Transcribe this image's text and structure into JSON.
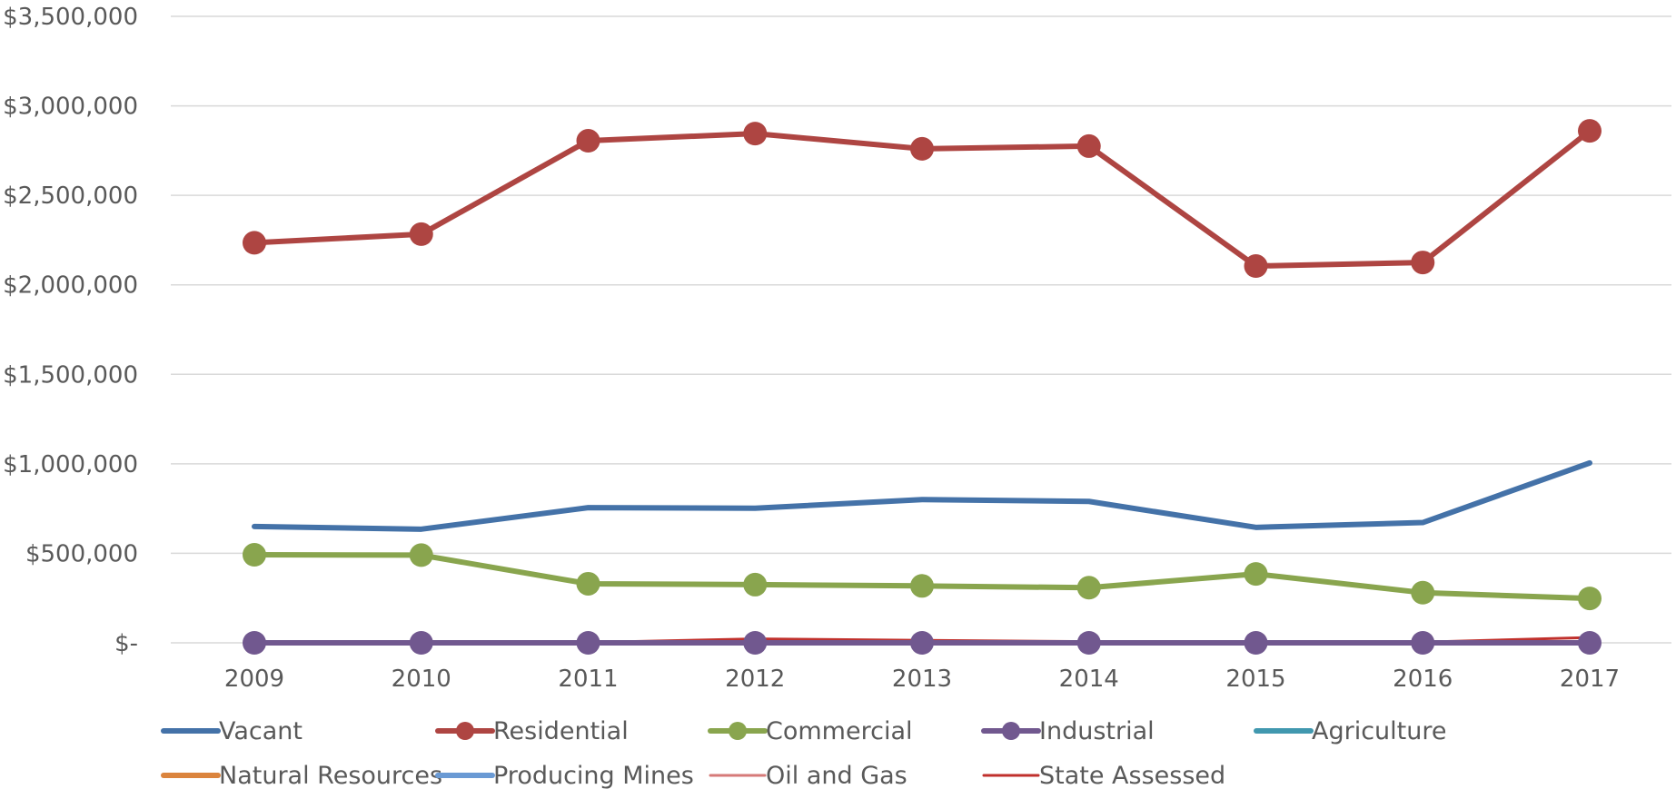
{
  "chart_data": {
    "type": "line",
    "title": "",
    "xlabel": "",
    "ylabel": "",
    "categories": [
      "2009",
      "2010",
      "2011",
      "2012",
      "2013",
      "2014",
      "2015",
      "2016",
      "2017"
    ],
    "ylim": [
      0,
      3500000
    ],
    "y_ticks": [
      {
        "value": 0,
        "label": "$-"
      },
      {
        "value": 500000,
        "label": "$500,000"
      },
      {
        "value": 1000000,
        "label": "$1,000,000"
      },
      {
        "value": 1500000,
        "label": "$1,500,000"
      },
      {
        "value": 2000000,
        "label": "$2,000,000"
      },
      {
        "value": 2500000,
        "label": "$2,500,000"
      },
      {
        "value": 3000000,
        "label": "$3,000,000"
      },
      {
        "value": 3500000,
        "label": "$3,500,000"
      }
    ],
    "grid": true,
    "legend_position": "bottom",
    "series": [
      {
        "name": "Vacant",
        "color": "#4472a8",
        "marker": false,
        "width": 6,
        "values": [
          650000,
          635000,
          755000,
          752000,
          800000,
          790000,
          645000,
          672000,
          1005000
        ]
      },
      {
        "name": "Residential",
        "color": "#ae4542",
        "marker": true,
        "width": 6,
        "values": [
          2235000,
          2283000,
          2805000,
          2845000,
          2760000,
          2775000,
          2105000,
          2125000,
          2860000
        ]
      },
      {
        "name": "Commercial",
        "color": "#89a54e",
        "marker": true,
        "width": 6,
        "values": [
          492000,
          490000,
          330000,
          325000,
          318000,
          308000,
          385000,
          280000,
          248000
        ]
      },
      {
        "name": "Industrial",
        "color": "#71588f",
        "marker": true,
        "width": 6,
        "values": [
          0,
          0,
          0,
          0,
          0,
          0,
          0,
          0,
          0
        ]
      },
      {
        "name": "Agriculture",
        "color": "#4198af",
        "marker": false,
        "width": 6,
        "values": [
          0,
          0,
          0,
          0,
          0,
          0,
          0,
          0,
          0
        ]
      },
      {
        "name": "Natural Resources",
        "color": "#db843d",
        "marker": false,
        "width": 6,
        "values": [
          0,
          0,
          0,
          0,
          0,
          0,
          0,
          0,
          0
        ]
      },
      {
        "name": "Producing Mines",
        "color": "#6a9ad4",
        "marker": false,
        "width": 6,
        "values": [
          0,
          0,
          0,
          0,
          0,
          0,
          0,
          0,
          0
        ]
      },
      {
        "name": "Oil and Gas",
        "color": "#d67a78",
        "marker": false,
        "width": 3,
        "values": [
          0,
          0,
          0,
          0,
          0,
          0,
          0,
          0,
          0
        ]
      },
      {
        "name": "State Assessed",
        "color": "#c0302c",
        "marker": false,
        "width": 3,
        "values": [
          2000,
          2000,
          2000,
          22000,
          14000,
          7000,
          4000,
          4000,
          30000
        ]
      }
    ]
  }
}
